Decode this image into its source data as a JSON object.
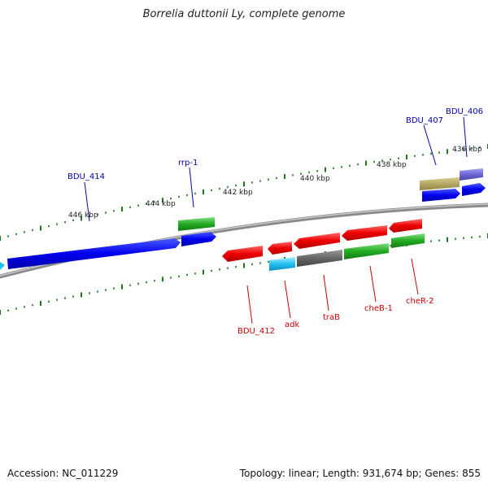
{
  "title": "Borrelia duttonii Ly, complete genome",
  "footer": {
    "accession": "Accession: NC_011229",
    "summary": "Topology: linear; Length: 931,674 bp; Genes: 855"
  },
  "colors": {
    "forward_label": "#0000aa",
    "reverse_label": "#cc0000",
    "tick": "#1a7a1a",
    "backbone": "#888888"
  },
  "scale_ticks": [
    "446 kbp",
    "444 kbp",
    "442 kbp",
    "440 kbp",
    "438 kbp",
    "436 kbp"
  ],
  "gene_labels": {
    "forward": [
      "BDU_414",
      "rrp-1",
      "BDU_407",
      "BDU_406"
    ],
    "reverse": [
      "BDU_412",
      "adk",
      "traB",
      "cheB-1",
      "cheR-2"
    ]
  }
}
